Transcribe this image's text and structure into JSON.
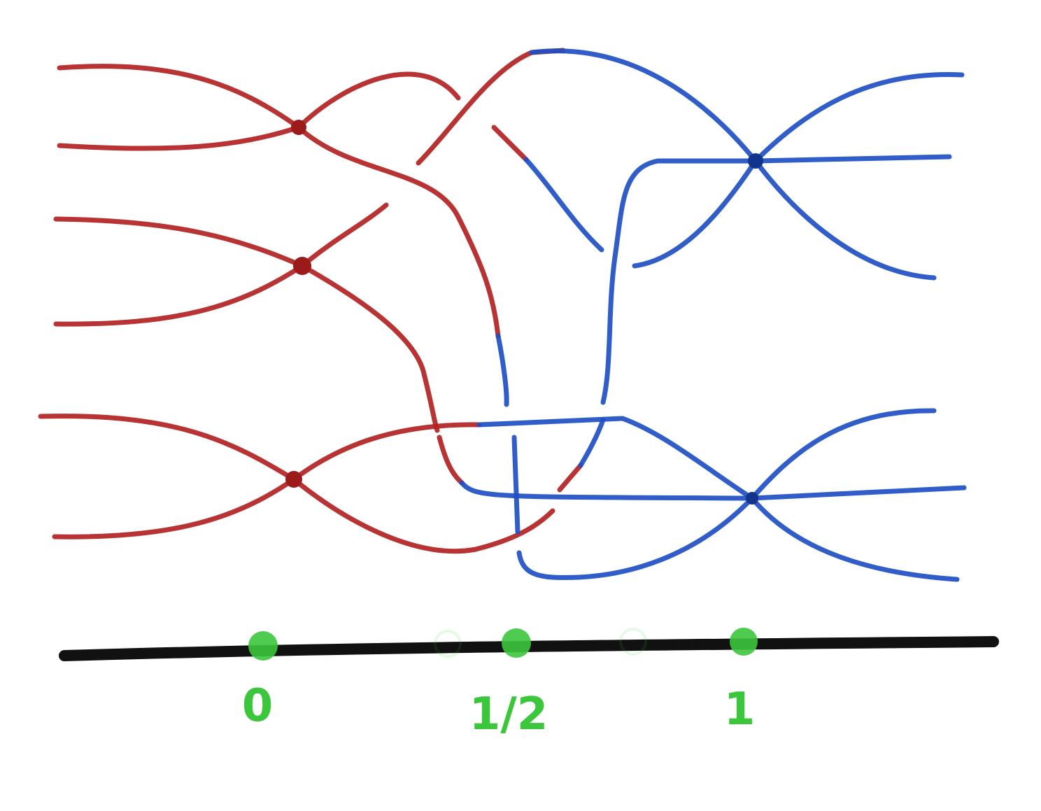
{
  "colors": {
    "red": "#b22222",
    "blue": "#1f4fc4",
    "axis": "#111111",
    "marker": "#3cc63c"
  },
  "axis": {
    "labels": [
      "0",
      "1/2",
      "1"
    ]
  }
}
